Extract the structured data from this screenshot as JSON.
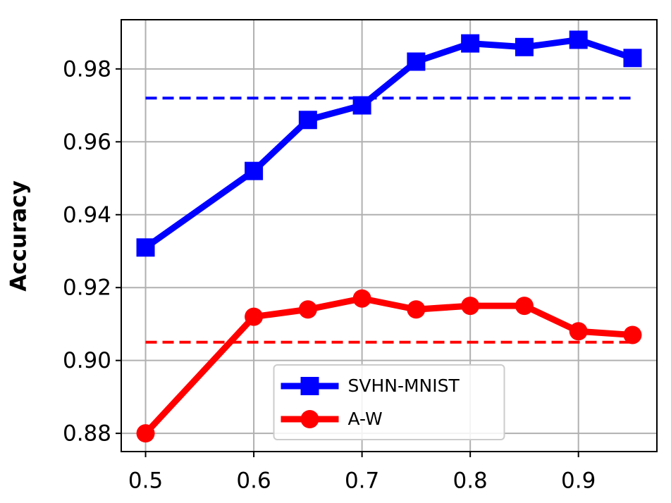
{
  "chart_data": {
    "type": "line",
    "ylabel": "Accuracy",
    "xlim": [
      0.4775,
      0.9725
    ],
    "ylim": [
      0.875,
      0.9935
    ],
    "xticks": [
      0.5,
      0.6,
      0.7,
      0.8,
      0.9
    ],
    "yticks": [
      0.88,
      {
        "value": 0.9,
        "label": "0.90"
      },
      0.92,
      0.94,
      0.96,
      0.98
    ],
    "grid": true,
    "legend": "lower center",
    "series": [
      {
        "name": "SVHN-MNIST",
        "color": "#0000ff",
        "marker": "square",
        "x": [
          0.5,
          0.6,
          0.65,
          0.7,
          0.75,
          0.8,
          0.85,
          0.9,
          0.95
        ],
        "values": [
          0.931,
          0.952,
          0.966,
          0.97,
          0.982,
          0.987,
          0.986,
          0.988,
          0.983
        ]
      },
      {
        "name": "A-W",
        "color": "#ff0000",
        "marker": "circle",
        "x": [
          0.5,
          0.6,
          0.65,
          0.7,
          0.75,
          0.8,
          0.85,
          0.9,
          0.95
        ],
        "values": [
          0.88,
          0.912,
          0.914,
          0.917,
          0.914,
          0.915,
          0.915,
          0.908,
          0.907
        ]
      }
    ],
    "reference_lines": [
      {
        "color": "#0000ff",
        "x": [
          0.5,
          0.95
        ],
        "value": 0.972
      },
      {
        "color": "#ff0000",
        "x": [
          0.5,
          0.95
        ],
        "value": 0.905
      }
    ]
  }
}
